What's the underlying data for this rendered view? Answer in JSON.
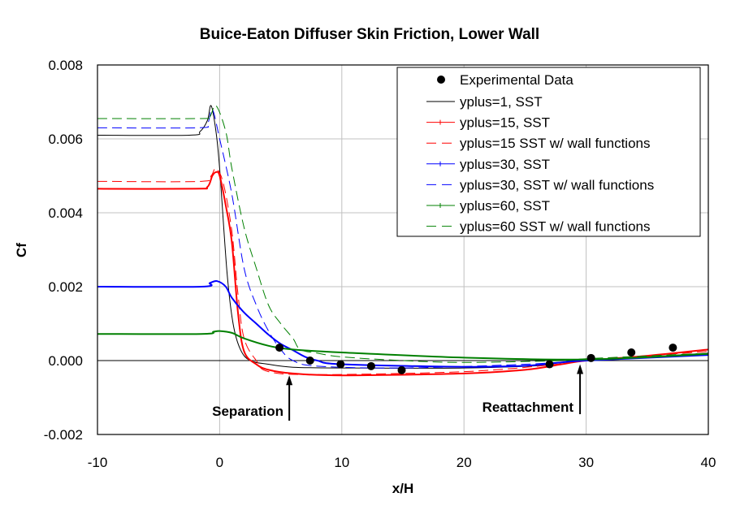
{
  "chart_data": {
    "type": "line",
    "title": "Buice-Eaton Diffuser Skin Friction, Lower Wall",
    "xlabel": "x/H",
    "ylabel": "Cf",
    "xlim": [
      -10,
      40
    ],
    "ylim": [
      -0.002,
      0.008
    ],
    "x_ticks": [
      "-10",
      "0",
      "10",
      "20",
      "30",
      "40"
    ],
    "y_ticks": [
      "-0.002",
      "0.000",
      "0.002",
      "0.004",
      "0.006",
      "0.008"
    ],
    "grid": true,
    "legend_position": "top-right",
    "annotations": [
      {
        "text": "Separation",
        "x": 5.7,
        "y_tip": -0.0004
      },
      {
        "text": "Reattachment",
        "x": 29.5,
        "y_tip": -0.0001
      }
    ],
    "experimental": {
      "name": "Experimental Data",
      "color": "#000000",
      "points": [
        [
          4.9,
          0.00035
        ],
        [
          7.4,
          0.0
        ],
        [
          9.9,
          -0.0001
        ],
        [
          12.4,
          -0.00015
        ],
        [
          14.9,
          -0.00026
        ],
        [
          27.0,
          -0.0001
        ],
        [
          30.4,
          7e-05
        ],
        [
          33.7,
          0.00022
        ],
        [
          37.1,
          0.00035
        ]
      ]
    },
    "series": [
      {
        "name": "yplus=1, SST",
        "color": "#000000",
        "style": "solid",
        "markers": false,
        "points": [
          [
            -10,
            0.0061
          ],
          [
            -2.5,
            0.0061
          ],
          [
            -1.6,
            0.0062
          ],
          [
            -1,
            0.0065
          ],
          [
            -0.7,
            0.0069
          ],
          [
            -0.3,
            0.0062
          ],
          [
            0,
            0.0052
          ],
          [
            0.6,
            0.0024
          ],
          [
            1.1,
            0.001
          ],
          [
            1.7,
            0.0003
          ],
          [
            2.5,
            0.0
          ],
          [
            4,
            -0.0001
          ],
          [
            6,
            -0.00018
          ],
          [
            10,
            -0.0002
          ],
          [
            20,
            -0.0002
          ],
          [
            27,
            -0.00012
          ],
          [
            30,
            0.0
          ],
          [
            35,
            0.0001
          ],
          [
            40,
            0.0002
          ]
        ]
      },
      {
        "name": "yplus=15, SST",
        "color": "#ff0000",
        "style": "solid",
        "markers": true,
        "points": [
          [
            -10,
            0.00465
          ],
          [
            -2,
            0.00465
          ],
          [
            -1,
            0.0047
          ],
          [
            -0.6,
            0.005
          ],
          [
            -0.3,
            0.0051
          ],
          [
            0,
            0.005
          ],
          [
            0.5,
            0.0042
          ],
          [
            1,
            0.0032
          ],
          [
            1.5,
            0.0013
          ],
          [
            2,
            0.00025
          ],
          [
            3,
            -0.0001
          ],
          [
            4,
            -0.00025
          ],
          [
            6,
            -0.00035
          ],
          [
            10,
            -0.0004
          ],
          [
            20,
            -0.00035
          ],
          [
            25,
            -0.00025
          ],
          [
            28,
            -0.0001
          ],
          [
            30,
            0.0
          ],
          [
            35,
            0.00013
          ],
          [
            40,
            0.0003
          ]
        ]
      },
      {
        "name": "yplus=15 SST w/ wall functions",
        "color": "#ff0000",
        "style": "dashed",
        "markers": false,
        "points": [
          [
            -10,
            0.00485
          ],
          [
            -1.5,
            0.00485
          ],
          [
            -0.7,
            0.005
          ],
          [
            -0.3,
            0.0052
          ],
          [
            0.3,
            0.0048
          ],
          [
            1,
            0.0035
          ],
          [
            1.5,
            0.0018
          ],
          [
            2,
            0.0006
          ],
          [
            3,
            0.0
          ],
          [
            4,
            -0.0003
          ],
          [
            8,
            -0.00038
          ],
          [
            20,
            -0.0003
          ],
          [
            27,
            -0.00012
          ],
          [
            30,
            0.0
          ],
          [
            40,
            0.00025
          ]
        ]
      },
      {
        "name": "yplus=30, SST",
        "color": "#0000ff",
        "style": "solid",
        "markers": true,
        "points": [
          [
            -10,
            0.002
          ],
          [
            -1.5,
            0.002
          ],
          [
            -0.8,
            0.0021
          ],
          [
            -0.2,
            0.00215
          ],
          [
            0.5,
            0.002
          ],
          [
            1,
            0.0017
          ],
          [
            2,
            0.0013
          ],
          [
            3,
            0.001
          ],
          [
            4,
            0.0007
          ],
          [
            5,
            0.00045
          ],
          [
            6,
            0.00028
          ],
          [
            7,
            0.0001
          ],
          [
            8,
            0.0
          ],
          [
            10,
            -0.0001
          ],
          [
            20,
            -0.00017
          ],
          [
            25,
            -0.00014
          ],
          [
            28,
            -5e-05
          ],
          [
            30,
            0.0
          ],
          [
            40,
            0.00015
          ]
        ]
      },
      {
        "name": "yplus=30, SST w/ wall functions",
        "color": "#0000ff",
        "style": "dashed",
        "markers": false,
        "points": [
          [
            -10,
            0.0063
          ],
          [
            -1.8,
            0.0063
          ],
          [
            -1,
            0.0064
          ],
          [
            -0.6,
            0.0068
          ],
          [
            0,
            0.006
          ],
          [
            1,
            0.0045
          ],
          [
            2,
            0.0025
          ],
          [
            3,
            0.0015
          ],
          [
            4,
            0.0008
          ],
          [
            5,
            0.0003
          ],
          [
            6,
            0.0
          ],
          [
            8,
            -0.00015
          ],
          [
            15,
            -0.0002
          ],
          [
            25,
            -0.0001
          ],
          [
            30,
            0.0
          ],
          [
            40,
            0.00015
          ]
        ]
      },
      {
        "name": "yplus=60, SST",
        "color": "#008000",
        "style": "solid",
        "markers": true,
        "points": [
          [
            -10,
            0.00072
          ],
          [
            -1.5,
            0.00072
          ],
          [
            -0.5,
            0.00078
          ],
          [
            0,
            0.0008
          ],
          [
            1,
            0.00075
          ],
          [
            2,
            0.0006
          ],
          [
            4,
            0.0004
          ],
          [
            6,
            0.0003
          ],
          [
            10,
            0.00022
          ],
          [
            20,
            8e-05
          ],
          [
            30,
            3e-05
          ],
          [
            40,
            0.00018
          ]
        ]
      },
      {
        "name": "yplus=60 SST w/ wall functions",
        "color": "#008000",
        "style": "dashed",
        "markers": false,
        "points": [
          [
            -10,
            0.00655
          ],
          [
            -1.5,
            0.00655
          ],
          [
            -0.8,
            0.0066
          ],
          [
            -0.3,
            0.0069
          ],
          [
            0.5,
            0.0062
          ],
          [
            1,
            0.0052
          ],
          [
            2,
            0.0036
          ],
          [
            3,
            0.0025
          ],
          [
            4,
            0.0015
          ],
          [
            5,
            0.001
          ],
          [
            6,
            0.0006
          ],
          [
            6.6,
            0.0003
          ],
          [
            8,
            0.0002
          ],
          [
            10,
            0.0001
          ],
          [
            15,
            0.0
          ],
          [
            20,
            -5e-05
          ],
          [
            28,
            0.0
          ],
          [
            30,
            5e-05
          ],
          [
            40,
            0.0002
          ]
        ]
      }
    ]
  }
}
